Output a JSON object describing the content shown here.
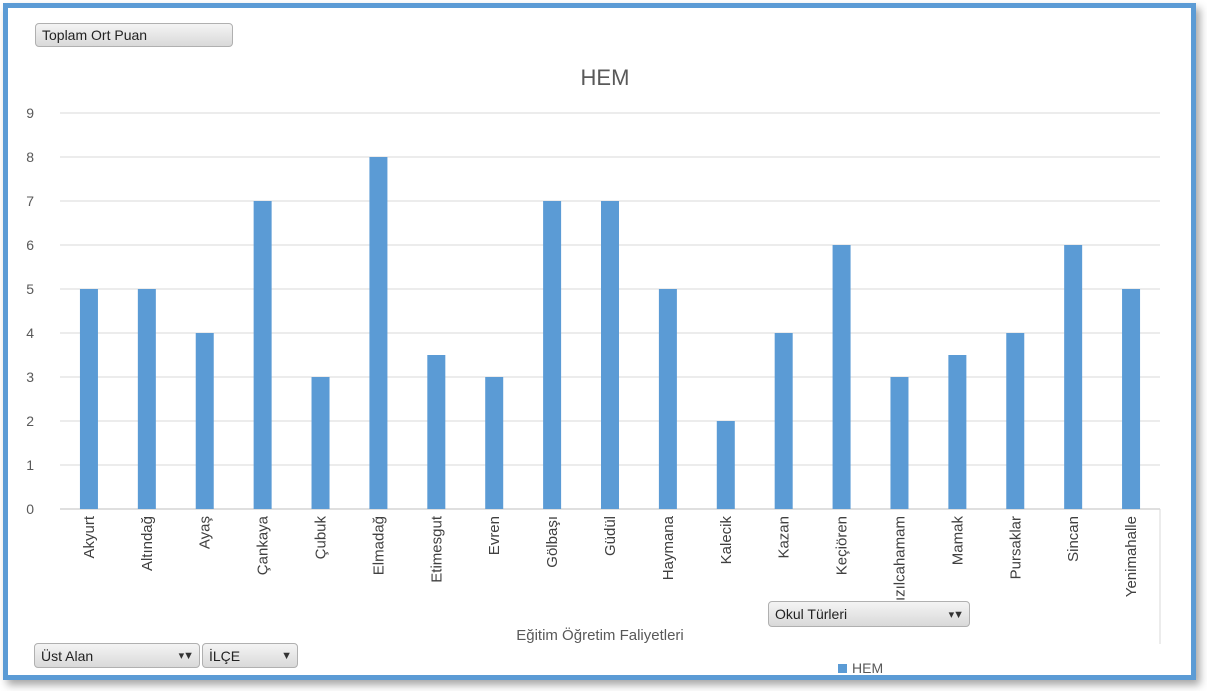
{
  "buttons": {
    "value_field": "Toplam Ort Puan",
    "okul_turleri": "Okul Türleri",
    "ust_alan": "Üst Alan",
    "ilce": "İLÇE"
  },
  "colors": {
    "bar": "#5b9bd5",
    "frame": "#5b9bd5",
    "grid": "#d9d9d9"
  },
  "chart_data": {
    "type": "bar",
    "title": "HEM",
    "xlabel": "Eğitim Öğretim Faliyetleri",
    "ylabel": "",
    "ylim": [
      0,
      9
    ],
    "yticks": [
      0,
      1,
      2,
      3,
      4,
      5,
      6,
      7,
      8,
      9
    ],
    "grid": true,
    "legend_position": "bottom",
    "categories": [
      "Akyurt",
      "Altındağ",
      "Ayaş",
      "Çankaya",
      "Çubuk",
      "Elmadağ",
      "Etimesgut",
      "Evren",
      "Gölbaşı",
      "Güdül",
      "Haymana",
      "Kalecik",
      "Kazan",
      "Keçiören",
      "Kızılcahamam",
      "Mamak",
      "Pursaklar",
      "Sincan",
      "Yenimahalle"
    ],
    "series": [
      {
        "name": "HEM",
        "values": [
          5,
          5,
          4,
          7,
          3,
          8,
          3.5,
          3,
          7,
          7,
          5,
          2,
          4,
          6,
          3,
          3.5,
          4,
          6,
          5
        ]
      }
    ]
  }
}
